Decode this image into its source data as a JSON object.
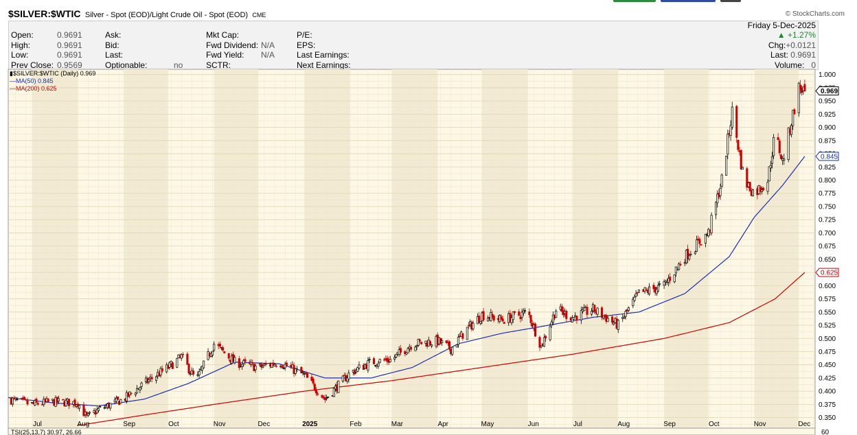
{
  "header": {
    "symbol": "$SILVER:$WTIC",
    "description": "Silver - Spot (EOD)/Light Crude Oil - Spot (EOD)",
    "exchange": "CME",
    "logo": "© StockCharts.com",
    "date": "Friday  5-Dec-2025",
    "change_pct": "+1.27%",
    "chg_label": "Chg:",
    "chg_value": "+0.0121",
    "last_label": "Last:",
    "last_value": "0.9691",
    "volume_label": "Volume:",
    "volume_value": "0",
    "fields": {
      "open_label": "Open:",
      "open": "0.9691",
      "high_label": "High:",
      "high": "0.9691",
      "low_label": "Low:",
      "low": "0.9691",
      "prev_close_label": "Prev Close:",
      "prev_close": "0.9569",
      "ask_label": "Ask:",
      "bid_label": "Bid:",
      "last2_label": "Last:",
      "optionable_label": "Optionable:",
      "optionable": "no",
      "mkt_cap_label": "Mkt Cap:",
      "fwd_div_label": "Fwd Dividend:",
      "fwd_div": "N/A",
      "fwd_yield_label": "Fwd Yield:",
      "fwd_yield": "N/A",
      "sctr_label": "SCTR:",
      "pe_label": "P/E:",
      "eps_label": "EPS:",
      "last_earnings_label": "Last Earnings:",
      "next_earnings_label": "Next Earnings:"
    }
  },
  "legend": {
    "price": "$SILVER:$WTIC (Daily) 0.969",
    "ma50": "MA(50) 0.845",
    "ma200": "MA(200) 0.625",
    "tsi": "TSI(25,13,7) 30.97, 26.66"
  },
  "colors": {
    "up": "#000000",
    "down": "#cc0000",
    "ma50": "#1a2fb0",
    "ma200": "#cc0000",
    "panel_bg": "#fdf8e6",
    "band_bg": "#f2ead2"
  },
  "chart_data": {
    "type": "candlestick",
    "symbol": "$SILVER:$WTIC",
    "ylim": [
      0.33,
      1.01
    ],
    "y_ticks": [
      0.35,
      0.375,
      0.4,
      0.425,
      0.45,
      0.475,
      0.5,
      0.525,
      0.55,
      0.575,
      0.6,
      0.625,
      0.65,
      0.675,
      0.7,
      0.725,
      0.75,
      0.775,
      0.8,
      0.825,
      0.85,
      0.875,
      0.9,
      0.925,
      0.95,
      0.975,
      1.0
    ],
    "x_ticks": [
      "Jul",
      "Aug",
      "Sep",
      "Oct",
      "Nov",
      "Dec",
      "2025",
      "Feb",
      "Mar",
      "Apr",
      "May",
      "Jun",
      "Jul",
      "Aug",
      "Sep",
      "Oct",
      "Nov",
      "Dec"
    ],
    "last_price": 0.969,
    "ma50_last": 0.845,
    "ma200_last": 0.625,
    "price_path": [
      [
        "2024-06-15",
        0.385
      ],
      [
        "2024-07-01",
        0.375
      ],
      [
        "2024-07-15",
        0.38
      ],
      [
        "2024-08-01",
        0.378
      ],
      [
        "2024-08-07",
        0.35
      ],
      [
        "2024-08-15",
        0.365
      ],
      [
        "2024-09-01",
        0.385
      ],
      [
        "2024-09-15",
        0.415
      ],
      [
        "2024-10-01",
        0.445
      ],
      [
        "2024-10-10",
        0.465
      ],
      [
        "2024-10-20",
        0.42
      ],
      [
        "2024-11-01",
        0.49
      ],
      [
        "2024-11-15",
        0.455
      ],
      [
        "2024-12-01",
        0.445
      ],
      [
        "2024-12-15",
        0.455
      ],
      [
        "2025-01-01",
        0.43
      ],
      [
        "2025-01-15",
        0.385
      ],
      [
        "2025-02-01",
        0.435
      ],
      [
        "2025-02-15",
        0.455
      ],
      [
        "2025-03-01",
        0.46
      ],
      [
        "2025-03-15",
        0.49
      ],
      [
        "2025-04-01",
        0.495
      ],
      [
        "2025-04-10",
        0.48
      ],
      [
        "2025-04-20",
        0.515
      ],
      [
        "2025-05-01",
        0.545
      ],
      [
        "2025-05-15",
        0.535
      ],
      [
        "2025-06-01",
        0.55
      ],
      [
        "2025-06-10",
        0.485
      ],
      [
        "2025-06-20",
        0.555
      ],
      [
        "2025-07-01",
        0.54
      ],
      [
        "2025-07-15",
        0.555
      ],
      [
        "2025-08-01",
        0.525
      ],
      [
        "2025-08-15",
        0.585
      ],
      [
        "2025-09-01",
        0.6
      ],
      [
        "2025-09-15",
        0.655
      ],
      [
        "2025-10-01",
        0.7
      ],
      [
        "2025-10-10",
        0.8
      ],
      [
        "2025-10-17",
        0.93
      ],
      [
        "2025-10-25",
        0.8
      ],
      [
        "2025-11-01",
        0.775
      ],
      [
        "2025-11-10",
        0.8
      ],
      [
        "2025-11-15",
        0.89
      ],
      [
        "2025-11-20",
        0.835
      ],
      [
        "2025-12-01",
        0.975
      ],
      [
        "2025-12-05",
        0.969
      ]
    ],
    "ma50_path": [
      [
        "2024-06-15",
        0.388
      ],
      [
        "2024-07-15",
        0.378
      ],
      [
        "2024-08-15",
        0.372
      ],
      [
        "2024-09-15",
        0.385
      ],
      [
        "2024-10-15",
        0.415
      ],
      [
        "2024-11-15",
        0.455
      ],
      [
        "2024-12-15",
        0.452
      ],
      [
        "2025-01-15",
        0.425
      ],
      [
        "2025-02-15",
        0.425
      ],
      [
        "2025-03-15",
        0.445
      ],
      [
        "2025-04-15",
        0.49
      ],
      [
        "2025-05-15",
        0.51
      ],
      [
        "2025-06-15",
        0.525
      ],
      [
        "2025-07-15",
        0.54
      ],
      [
        "2025-08-15",
        0.55
      ],
      [
        "2025-09-15",
        0.585
      ],
      [
        "2025-10-15",
        0.655
      ],
      [
        "2025-11-01",
        0.73
      ],
      [
        "2025-11-20",
        0.79
      ],
      [
        "2025-12-05",
        0.845
      ]
    ],
    "ma200_path": [
      [
        "2024-08-01",
        0.335
      ],
      [
        "2024-09-15",
        0.355
      ],
      [
        "2024-11-01",
        0.375
      ],
      [
        "2025-01-01",
        0.4
      ],
      [
        "2025-03-01",
        0.42
      ],
      [
        "2025-05-01",
        0.445
      ],
      [
        "2025-07-01",
        0.47
      ],
      [
        "2025-09-01",
        0.5
      ],
      [
        "2025-10-15",
        0.53
      ],
      [
        "2025-11-15",
        0.575
      ],
      [
        "2025-12-05",
        0.625
      ]
    ],
    "tsi": {
      "value": 30.97,
      "signal": 26.66,
      "axis_label": "60"
    }
  }
}
